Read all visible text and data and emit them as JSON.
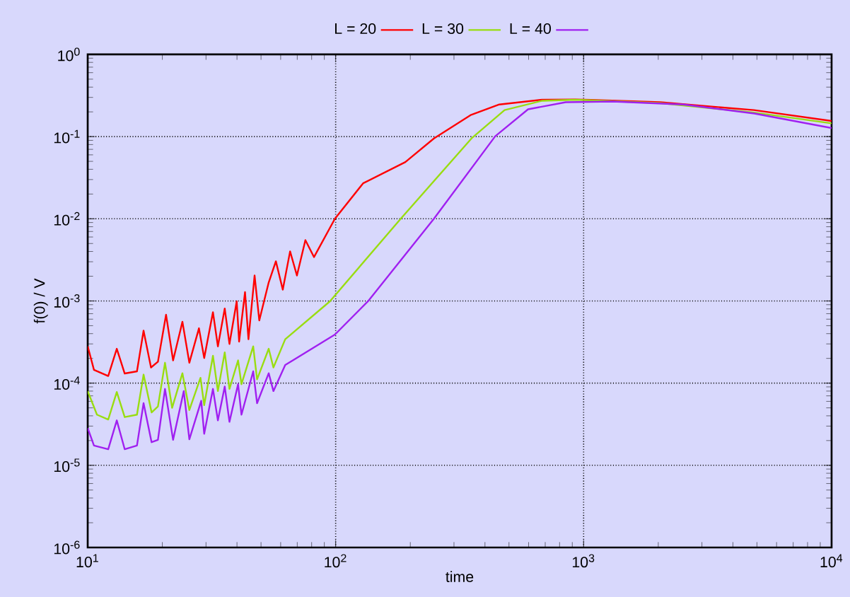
{
  "chart_data": {
    "type": "line",
    "xlabel": "time",
    "ylabel": "f(0) / V",
    "log": "xy",
    "grid": true,
    "legend": "top",
    "marker": "none",
    "line_style": "solid",
    "xlim": [
      10,
      10000
    ],
    "ylim": [
      1e-06,
      1
    ],
    "xticks": [
      {
        "value": 10,
        "label": "10$^{1}$"
      },
      {
        "value": 100,
        "label": "10$^{2}$"
      },
      {
        "value": 1000,
        "label": "10$^{3}$"
      },
      {
        "value": 10000,
        "label": "10$^{4}$"
      }
    ],
    "yticks": [
      {
        "value": 1e-06,
        "label": "10$^{-6}$"
      },
      {
        "value": 1e-05,
        "label": "10$^{-5}$"
      },
      {
        "value": 0.0001,
        "label": "10$^{-4}$"
      },
      {
        "value": 0.001,
        "label": "10$^{-3}$"
      },
      {
        "value": 0.01,
        "label": "10$^{-2}$"
      },
      {
        "value": 0.1,
        "label": "10$^{-1}$"
      },
      {
        "value": 1,
        "label": "10$^{0}$"
      }
    ],
    "series": [
      {
        "name": "L = 20",
        "color": "#ff0000",
        "x": [
          10,
          10.6,
          12.1,
          13.1,
          14.1,
          15.8,
          16.8,
          18.0,
          19.2,
          20.7,
          22.1,
          24.1,
          25.7,
          28.1,
          29.5,
          32.0,
          33.5,
          35.7,
          37.3,
          39.9,
          40.8,
          43.1,
          44.5,
          47.1,
          49.2,
          53.7,
          57.4,
          61.2,
          65.5,
          69.8,
          75.5,
          81.8,
          99.3,
          129,
          191,
          249,
          352,
          457,
          678,
          925,
          2036,
          4864,
          10000
        ],
        "values": [
          0.000281,
          0.000145,
          0.000122,
          0.000262,
          0.000131,
          0.000139,
          0.000435,
          0.000155,
          0.000182,
          0.00068,
          0.000189,
          0.000558,
          0.000177,
          0.000465,
          0.000202,
          0.00073,
          0.00028,
          0.00081,
          0.0003,
          0.00099,
          0.00032,
          0.00128,
          0.000342,
          0.00204,
          0.00058,
          0.00168,
          0.00304,
          0.00137,
          0.00401,
          0.00204,
          0.0055,
          0.00342,
          0.01,
          0.027,
          0.049,
          0.095,
          0.184,
          0.246,
          0.281,
          0.284,
          0.262,
          0.21,
          0.155
        ]
      },
      {
        "name": "L = 30",
        "color": "#99dd11",
        "x": [
          10,
          10.9,
          12.1,
          13.1,
          14.1,
          15.8,
          16.8,
          18.1,
          19.2,
          20.5,
          21.9,
          24.1,
          25.7,
          28.5,
          29.5,
          32.0,
          33.5,
          35.7,
          37.3,
          40.4,
          41.7,
          46.5,
          48.2,
          53.7,
          56.1,
          62.6,
          94.8,
          183,
          353,
          480,
          681,
          925,
          2036,
          4864,
          10000
        ],
        "values": [
          7.98e-05,
          4.13e-05,
          3.61e-05,
          7.8e-05,
          3.86e-05,
          4.13e-05,
          0.000127,
          4.4e-05,
          5.2e-05,
          0.000177,
          5e-05,
          0.000132,
          4.7e-05,
          0.000116,
          5.4e-05,
          0.000215,
          8e-05,
          0.000237,
          8.5e-05,
          0.000189,
          9.7e-05,
          0.00028,
          0.000111,
          0.000262,
          0.000155,
          0.000342,
          0.00099,
          0.01,
          0.095,
          0.21,
          0.273,
          0.281,
          0.256,
          0.196,
          0.145
        ]
      },
      {
        "name": "L = 40",
        "color": "#a020f0",
        "x": [
          10,
          10.6,
          12.1,
          13.1,
          14.1,
          15.8,
          16.8,
          18.1,
          19.2,
          20.5,
          22.1,
          24.4,
          25.7,
          28.7,
          29.5,
          32.0,
          33.5,
          35.7,
          37.3,
          40.4,
          41.7,
          46.5,
          48.2,
          53.7,
          56.1,
          62.6,
          99.3,
          135,
          249,
          440,
          597,
          847,
          1312,
          2529,
          4887,
          10000
        ],
        "values": [
          2.84e-05,
          1.74e-05,
          1.57e-05,
          3.52e-05,
          1.57e-05,
          1.74e-05,
          5.7e-05,
          1.91e-05,
          2.04e-05,
          8.5e-05,
          2.04e-05,
          8e-05,
          2.07e-05,
          6.1e-05,
          2.42e-05,
          8.5e-05,
          3.52e-05,
          9.1e-05,
          3.38e-05,
          9.7e-05,
          4.13e-05,
          0.000139,
          5.7e-05,
          0.000132,
          8e-05,
          0.000166,
          0.00039,
          0.00099,
          0.01,
          0.101,
          0.215,
          0.262,
          0.267,
          0.246,
          0.191,
          0.127
        ]
      }
    ]
  }
}
